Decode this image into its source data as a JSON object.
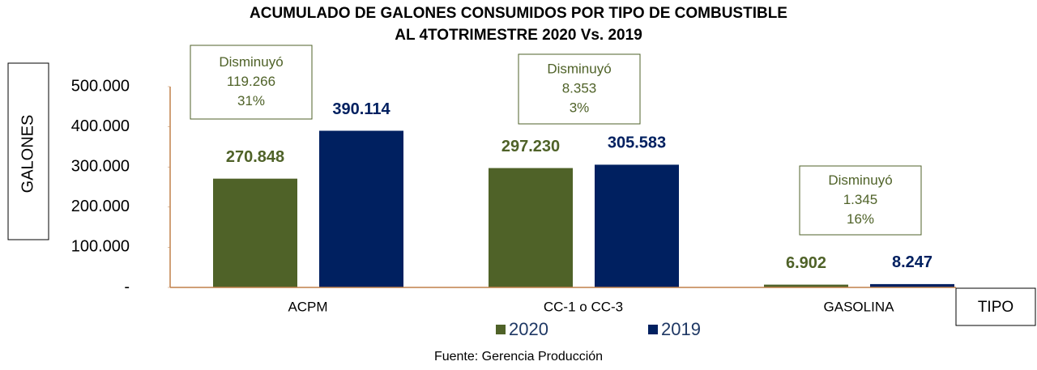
{
  "chart_data": {
    "type": "bar",
    "title": [
      "ACUMULADO DE GALONES CONSUMIDOS POR TIPO DE COMBUSTIBLE",
      "AL 4TOTRIMESTRE 2020 Vs. 2019"
    ],
    "y_label": "GALONES",
    "x_label": "TIPO",
    "categories": [
      "ACPM",
      "CC-1 o CC-3",
      "GASOLINA"
    ],
    "series": [
      {
        "name": "2020",
        "color": "#4f6228",
        "values": [
          270848,
          297230,
          6902
        ],
        "value_labels": [
          "270.848",
          "297.230",
          "6.902"
        ]
      },
      {
        "name": "2019",
        "color": "#002060",
        "values": [
          390114,
          305583,
          8247
        ],
        "value_labels": [
          "390.114",
          "305.583",
          "8.247"
        ]
      }
    ],
    "ylim": [
      0,
      500000
    ],
    "yticks": [
      {
        "value": 0,
        "label": "-"
      },
      {
        "value": 100000,
        "label": "100.000"
      },
      {
        "value": 200000,
        "label": "200.000"
      },
      {
        "value": 300000,
        "label": "300.000"
      },
      {
        "value": 400000,
        "label": "400.000"
      },
      {
        "value": 500000,
        "label": "500.000"
      }
    ],
    "annotations": [
      [
        "Disminuyó",
        "119.266",
        "31%"
      ],
      [
        "Disminuyó",
        "8.353",
        "3%"
      ],
      [
        "Disminuyó",
        "1.345",
        "16%"
      ]
    ],
    "source": "Fuente: Gerencia Producción"
  }
}
